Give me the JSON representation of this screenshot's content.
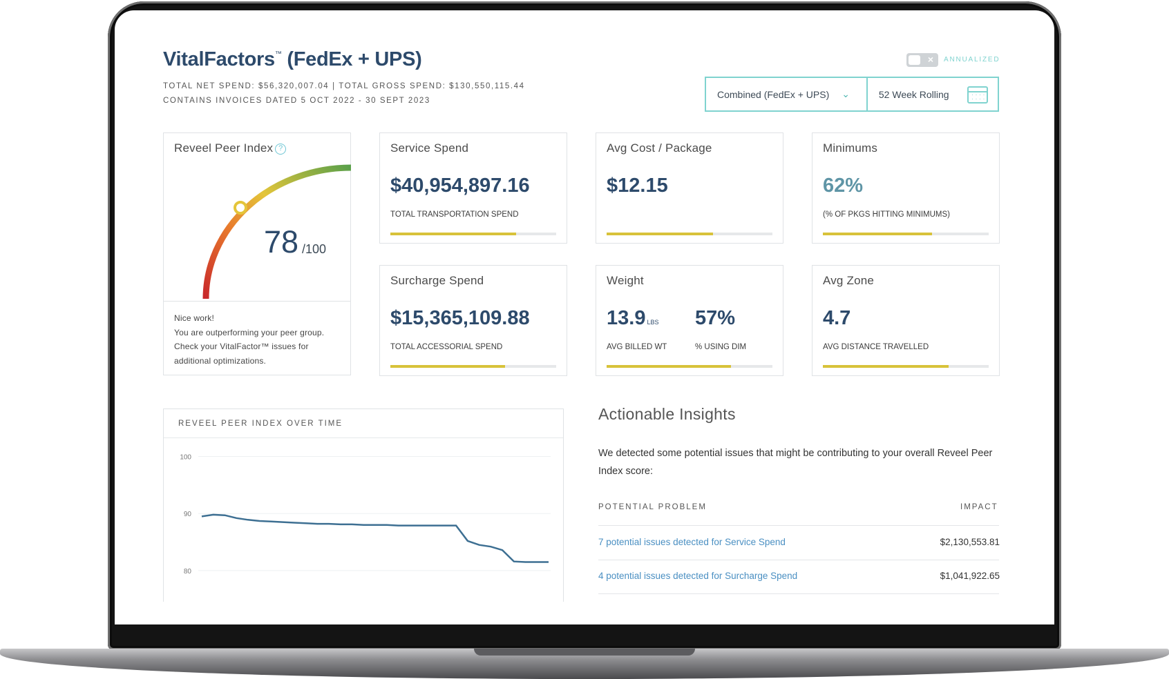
{
  "header": {
    "title": "VitalFactors",
    "title_tm": "™",
    "title_suffix": " (FedEx + UPS)",
    "meta_line1": "Total Net Spend: $56,320,007.04  |  Total Gross Spend: $130,550,115.44",
    "meta_line2": "Contains Invoices Dated 5 Oct 2022 - 30 Sept 2023",
    "toggle_label": "Annualized",
    "toggle_state": "off",
    "carrier_select": "Combined (FedEx + UPS)",
    "period_select": "52 Week Rolling"
  },
  "peer_index": {
    "title": "Reveel Peer Index",
    "score": "78",
    "max": "/100",
    "score_fraction": 0.78,
    "message": [
      "Nice work!",
      "You are outperforming your peer group.",
      "Check your VitalFactor™ issues for",
      "additional optimizations."
    ]
  },
  "cards": [
    {
      "title": "Service Spend",
      "value": "$40,954,897.16",
      "sub": "Total Transportation Spend",
      "fill": 0.76
    },
    {
      "title": "Avg Cost / Package",
      "value": "$12.15",
      "sub": "",
      "fill": 0.64
    },
    {
      "title": "Minimums",
      "value": "62%",
      "sub": "(% of pkgs hitting minimums)",
      "fill": 0.66
    },
    {
      "title": "Surcharge Spend",
      "value": "$15,365,109.88",
      "sub": "Total Accessorial Spend",
      "fill": 0.69
    },
    {
      "title": "Weight",
      "value": "13.9",
      "unit": "LBS",
      "value2": "57%",
      "sub": "Avg Billed Wt",
      "sub2": "% Using Dim",
      "fill": 0.75
    },
    {
      "title": "Avg Zone",
      "value": "4.7",
      "sub": "Avg Distance Travelled",
      "fill": 0.76
    }
  ],
  "chart": {
    "title": "Reveel Peer Index Over Time"
  },
  "chart_data": {
    "type": "line",
    "title": "Reveel Peer Index Over Time",
    "ylim": [
      76,
      102
    ],
    "yticks": [
      "100",
      "90",
      "80"
    ],
    "grid": true,
    "series": [
      {
        "values": [
          89.5,
          89.8,
          89.7,
          89.2,
          88.9,
          88.7,
          88.6,
          88.5,
          88.4,
          88.3,
          88.2,
          88.2,
          88.1,
          88.1,
          88.0,
          88.0,
          88.0,
          87.9,
          87.9,
          87.9,
          87.9,
          87.9,
          87.9,
          85.2,
          84.5,
          84.2,
          83.6,
          81.6,
          81.5,
          81.5,
          81.5
        ]
      }
    ]
  },
  "insights": {
    "title": "Actionable Insights",
    "description": "We detected some potential issues that might be contributing to your overall Reveel Peer Index score:",
    "col_problem": "Potential Problem",
    "col_impact": "Impact",
    "rows": [
      {
        "problem": "7 potential issues detected for Service Spend",
        "impact": "$2,130,553.81"
      },
      {
        "problem": "4 potential issues detected for Surcharge Spend",
        "impact": "$1,041,922.65"
      }
    ]
  },
  "colors": {
    "title": "#2d4a6b",
    "accent": "#7fd3cf",
    "bar_fill": "#d8c23a",
    "link": "#4a8fc2",
    "line": "#3d6f92"
  }
}
